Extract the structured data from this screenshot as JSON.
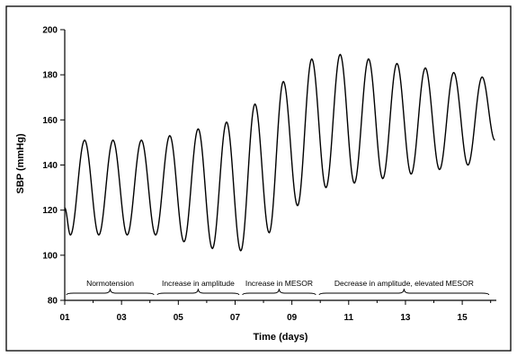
{
  "chart_data": {
    "type": "line",
    "title": "",
    "xlabel": "Time (days)",
    "ylabel": "SBP (mmHg)",
    "xlim": [
      1,
      16.2
    ],
    "ylim": [
      80,
      200
    ],
    "x_ticks": [
      "01",
      "03",
      "05",
      "07",
      "09",
      "11",
      "13",
      "15"
    ],
    "x_tick_values": [
      1,
      3,
      5,
      7,
      9,
      11,
      13,
      15
    ],
    "y_ticks": [
      80,
      100,
      120,
      140,
      160,
      180,
      200
    ],
    "grid": false,
    "legend": "none",
    "line_color": "#000000",
    "series": [
      {
        "name": "",
        "period_days": 1,
        "first_trough_day": 1.2,
        "x": [
          1,
          1.2,
          1.7,
          2.2,
          2.7,
          3.2,
          3.7,
          4.2,
          4.7,
          5.2,
          5.7,
          6.2,
          6.7,
          7.2,
          7.7,
          8.2,
          8.7,
          9.2,
          9.7,
          10.2,
          10.7,
          11.2,
          11.7,
          12.2,
          12.7,
          13.2,
          13.7,
          14.2,
          14.7,
          15.2,
          15.7,
          16.15
        ],
        "y": [
          121,
          109,
          151,
          109,
          151,
          109,
          151,
          109,
          153,
          106,
          156,
          103,
          159,
          102,
          167,
          110,
          177,
          122,
          187,
          130,
          189,
          132,
          187,
          134,
          185,
          136,
          183,
          138,
          181,
          140,
          179,
          151
        ]
      }
    ],
    "annotations": [
      {
        "text": "Normotension",
        "x_start": 1,
        "x_end": 4.2
      },
      {
        "text": "Increase in amplitude",
        "x_start": 4.2,
        "x_end": 7.2
      },
      {
        "text": "Increase in MESOR",
        "x_start": 7.2,
        "x_end": 9.9
      },
      {
        "text": "Decrease in amplitude, elevated MESOR",
        "x_start": 9.9,
        "x_end": 16
      }
    ]
  }
}
